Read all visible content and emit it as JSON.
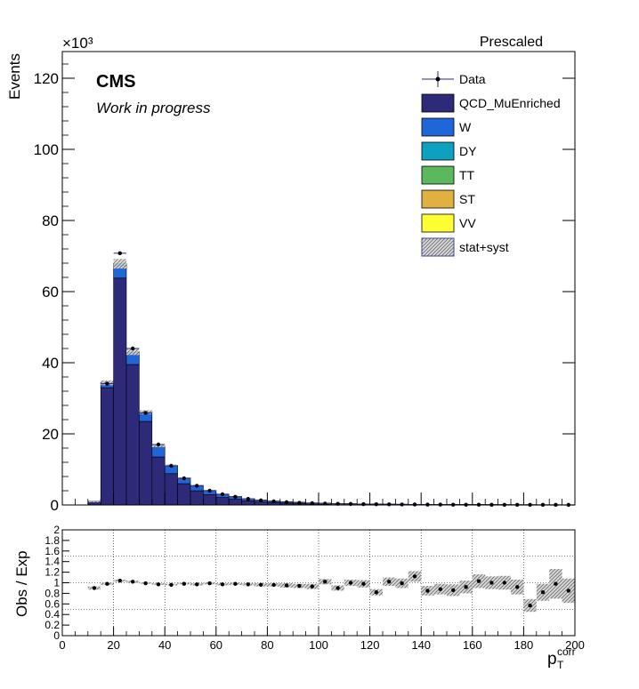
{
  "header": {
    "exponent_label": "×10³",
    "label": "Prescaled",
    "cms_label": "CMS",
    "sublabel": "Work in progress"
  },
  "chart_data": [
    {
      "type": "bar",
      "stacked": true,
      "ylabel": "Events",
      "ylim": [
        0,
        127.5
      ],
      "xlim": [
        0,
        200
      ],
      "y_scale_note": "×10³",
      "x_ticks": [
        "0",
        "20",
        "40",
        "60",
        "80",
        "100",
        "120",
        "140",
        "160",
        "180",
        "200"
      ],
      "y_ticks": [
        "0",
        "20",
        "40",
        "60",
        "80",
        "100",
        "120"
      ],
      "legend_position": "top-right",
      "legend": [
        {
          "name": "Data",
          "style": "marker"
        },
        {
          "name": "QCD_MuEnriched",
          "style": "box",
          "color": "#2e2a7a"
        },
        {
          "name": "W",
          "style": "box",
          "color": "#1f66d8"
        },
        {
          "name": "DY",
          "style": "box",
          "color": "#0ea0c0"
        },
        {
          "name": "TT",
          "style": "box",
          "color": "#5cb85c"
        },
        {
          "name": "ST",
          "style": "box",
          "color": "#e0b040"
        },
        {
          "name": "VV",
          "style": "box",
          "color": "#ffff33"
        },
        {
          "name": "stat+syst",
          "style": "hatch",
          "color": "#bbbbbb"
        }
      ],
      "bins": [
        [
          10,
          15
        ],
        [
          15,
          20
        ],
        [
          20,
          25
        ],
        [
          25,
          30
        ],
        [
          30,
          35
        ],
        [
          35,
          40
        ],
        [
          40,
          45
        ],
        [
          45,
          50
        ],
        [
          50,
          55
        ],
        [
          55,
          60
        ],
        [
          60,
          65
        ],
        [
          65,
          70
        ],
        [
          70,
          75
        ],
        [
          75,
          80
        ],
        [
          80,
          85
        ],
        [
          85,
          90
        ],
        [
          90,
          95
        ],
        [
          95,
          100
        ],
        [
          100,
          105
        ],
        [
          105,
          110
        ],
        [
          110,
          115
        ],
        [
          115,
          120
        ],
        [
          120,
          125
        ],
        [
          125,
          130
        ],
        [
          130,
          135
        ],
        [
          135,
          140
        ],
        [
          140,
          145
        ],
        [
          145,
          150
        ],
        [
          150,
          155
        ],
        [
          155,
          160
        ],
        [
          160,
          165
        ],
        [
          165,
          170
        ],
        [
          170,
          175
        ],
        [
          175,
          180
        ],
        [
          180,
          185
        ],
        [
          185,
          190
        ],
        [
          190,
          195
        ],
        [
          195,
          200
        ]
      ],
      "series": [
        {
          "name": "QCD_MuEnriched",
          "color": "#2e2a7a",
          "values": [
            0.9,
            33.0,
            63.8,
            39.5,
            23.5,
            13.5,
            8.8,
            6.0,
            4.0,
            2.9,
            2.1,
            1.6,
            1.15,
            0.85,
            0.65,
            0.5,
            0.4,
            0.3,
            0.25,
            0.2,
            0.17,
            0.14,
            0.12,
            0.1,
            0.09,
            0.08,
            0.07,
            0.06,
            0.05,
            0.05,
            0.04,
            0.04,
            0.035,
            0.03,
            0.03,
            0.025,
            0.025,
            0.02
          ]
        },
        {
          "name": "W",
          "color": "#1f66d8",
          "values": [
            0.08,
            1.2,
            3.6,
            3.2,
            2.4,
            2.9,
            2.2,
            1.5,
            1.4,
            1.1,
            0.9,
            0.75,
            0.6,
            0.5,
            0.4,
            0.35,
            0.3,
            0.25,
            0.2,
            0.18,
            0.15,
            0.13,
            0.12,
            0.1,
            0.09,
            0.08,
            0.07,
            0.06,
            0.05,
            0.05,
            0.045,
            0.04,
            0.035,
            0.03,
            0.03,
            0.025,
            0.025,
            0.02
          ]
        },
        {
          "name": "DY",
          "color": "#0ea0c0",
          "values": [
            0.01,
            0.15,
            0.4,
            0.3,
            0.2,
            0.15,
            0.1,
            0.08,
            0.06,
            0.05,
            0.04,
            0.03,
            0.03,
            0.02,
            0.02,
            0.02,
            0.015,
            0.01,
            0.01,
            0.01,
            0.01,
            0.008,
            0.006,
            0.005,
            0.005,
            0.004,
            0.004,
            0.003,
            0.003,
            0.003,
            0.003,
            0.002,
            0.002,
            0.002,
            0.002,
            0.002,
            0.002,
            0.002
          ]
        },
        {
          "name": "TT",
          "color": "#5cb85c",
          "values": [
            0.0,
            0.01,
            0.02,
            0.02,
            0.02,
            0.02,
            0.02,
            0.02,
            0.02,
            0.02,
            0.02,
            0.02,
            0.015,
            0.015,
            0.015,
            0.01,
            0.01,
            0.01,
            0.01,
            0.01,
            0.008,
            0.008,
            0.006,
            0.006,
            0.005,
            0.005,
            0.004,
            0.004,
            0.004,
            0.003,
            0.003,
            0.003,
            0.003,
            0.003,
            0.002,
            0.002,
            0.002,
            0.002
          ]
        },
        {
          "name": "ST",
          "color": "#e0b040",
          "values": [
            0.0,
            0.005,
            0.01,
            0.01,
            0.01,
            0.01,
            0.01,
            0.01,
            0.01,
            0.01,
            0.008,
            0.008,
            0.006,
            0.006,
            0.005,
            0.005,
            0.004,
            0.004,
            0.003,
            0.003,
            0.003,
            0.003,
            0.002,
            0.002,
            0.002,
            0.002,
            0.002,
            0.002,
            0.002,
            0.001,
            0.001,
            0.001,
            0.001,
            0.001,
            0.001,
            0.001,
            0.001,
            0.001
          ]
        },
        {
          "name": "VV",
          "color": "#ffff33",
          "values": [
            0,
            0,
            0,
            0,
            0,
            0,
            0,
            0,
            0,
            0,
            0,
            0,
            0,
            0,
            0,
            0,
            0,
            0,
            0,
            0,
            0,
            0,
            0,
            0,
            0,
            0,
            0,
            0,
            0,
            0,
            0,
            0,
            0,
            0,
            0,
            0,
            0,
            0
          ]
        }
      ],
      "data_series": {
        "name": "Data",
        "values": [
          null,
          34.1,
          70.8,
          44.0,
          25.9,
          17.0,
          11.0,
          7.5,
          5.4,
          4.0,
          3.0,
          2.3,
          1.7,
          1.3,
          1.0,
          0.78,
          0.6,
          0.5,
          0.4,
          0.33,
          0.28,
          0.24,
          0.2,
          0.17,
          0.15,
          0.13,
          0.11,
          0.1,
          0.09,
          0.08,
          0.07,
          0.06,
          0.05,
          0.05,
          0.045,
          0.04,
          0.035,
          0.03
        ]
      }
    },
    {
      "type": "scatter",
      "ylabel": "Obs / Exp",
      "xlabel": "p",
      "xlabel_sup": "corr",
      "xlabel_sub": "T",
      "ylim": [
        0,
        2
      ],
      "xlim": [
        0,
        200
      ],
      "x_ticks": [
        "0",
        "20",
        "40",
        "60",
        "80",
        "100",
        "120",
        "140",
        "160",
        "180",
        "200"
      ],
      "y_ticks": [
        "0",
        "0.2",
        "0.4",
        "0.6",
        "0.8",
        "1",
        "1.2",
        "1.4",
        "1.6",
        "1.8",
        "2"
      ],
      "grid": true,
      "x": [
        12.5,
        17.5,
        22.5,
        27.5,
        32.5,
        37.5,
        42.5,
        47.5,
        52.5,
        57.5,
        62.5,
        67.5,
        72.5,
        77.5,
        82.5,
        87.5,
        92.5,
        97.5,
        102.5,
        107.5,
        112.5,
        117.5,
        122.5,
        127.5,
        132.5,
        137.5,
        142.5,
        147.5,
        152.5,
        157.5,
        162.5,
        167.5,
        172.5,
        177.5,
        182.5,
        187.5,
        192.5,
        197.5
      ],
      "ratio": [
        0.9,
        0.98,
        1.04,
        1.02,
        0.99,
        0.97,
        0.96,
        0.98,
        0.97,
        0.99,
        0.97,
        0.98,
        0.97,
        0.96,
        0.96,
        0.95,
        0.94,
        0.93,
        1.02,
        0.9,
        1.0,
        0.98,
        0.82,
        1.02,
        0.99,
        1.12,
        0.85,
        0.88,
        0.86,
        0.92,
        1.03,
        1.0,
        1.0,
        0.92,
        0.57,
        0.82,
        0.98,
        0.85
      ],
      "band_lo": [
        0.87,
        0.96,
        1.02,
        1.0,
        0.98,
        0.96,
        0.95,
        0.97,
        0.95,
        0.97,
        0.95,
        0.96,
        0.95,
        0.93,
        0.93,
        0.91,
        0.9,
        0.88,
        0.97,
        0.85,
        0.94,
        0.91,
        0.76,
        0.94,
        0.9,
        1.02,
        0.76,
        0.78,
        0.75,
        0.8,
        0.9,
        0.88,
        0.87,
        0.78,
        0.45,
        0.66,
        0.7,
        0.62
      ],
      "band_hi": [
        0.93,
        1.0,
        1.06,
        1.04,
        1.01,
        0.99,
        0.98,
        1.0,
        0.99,
        1.01,
        0.99,
        1.0,
        0.99,
        0.99,
        0.99,
        0.99,
        0.98,
        0.98,
        1.07,
        0.95,
        1.06,
        1.05,
        0.88,
        1.1,
        1.08,
        1.22,
        0.94,
        0.98,
        0.97,
        1.04,
        1.16,
        1.12,
        1.13,
        1.06,
        0.69,
        0.98,
        1.26,
        1.08
      ]
    }
  ]
}
